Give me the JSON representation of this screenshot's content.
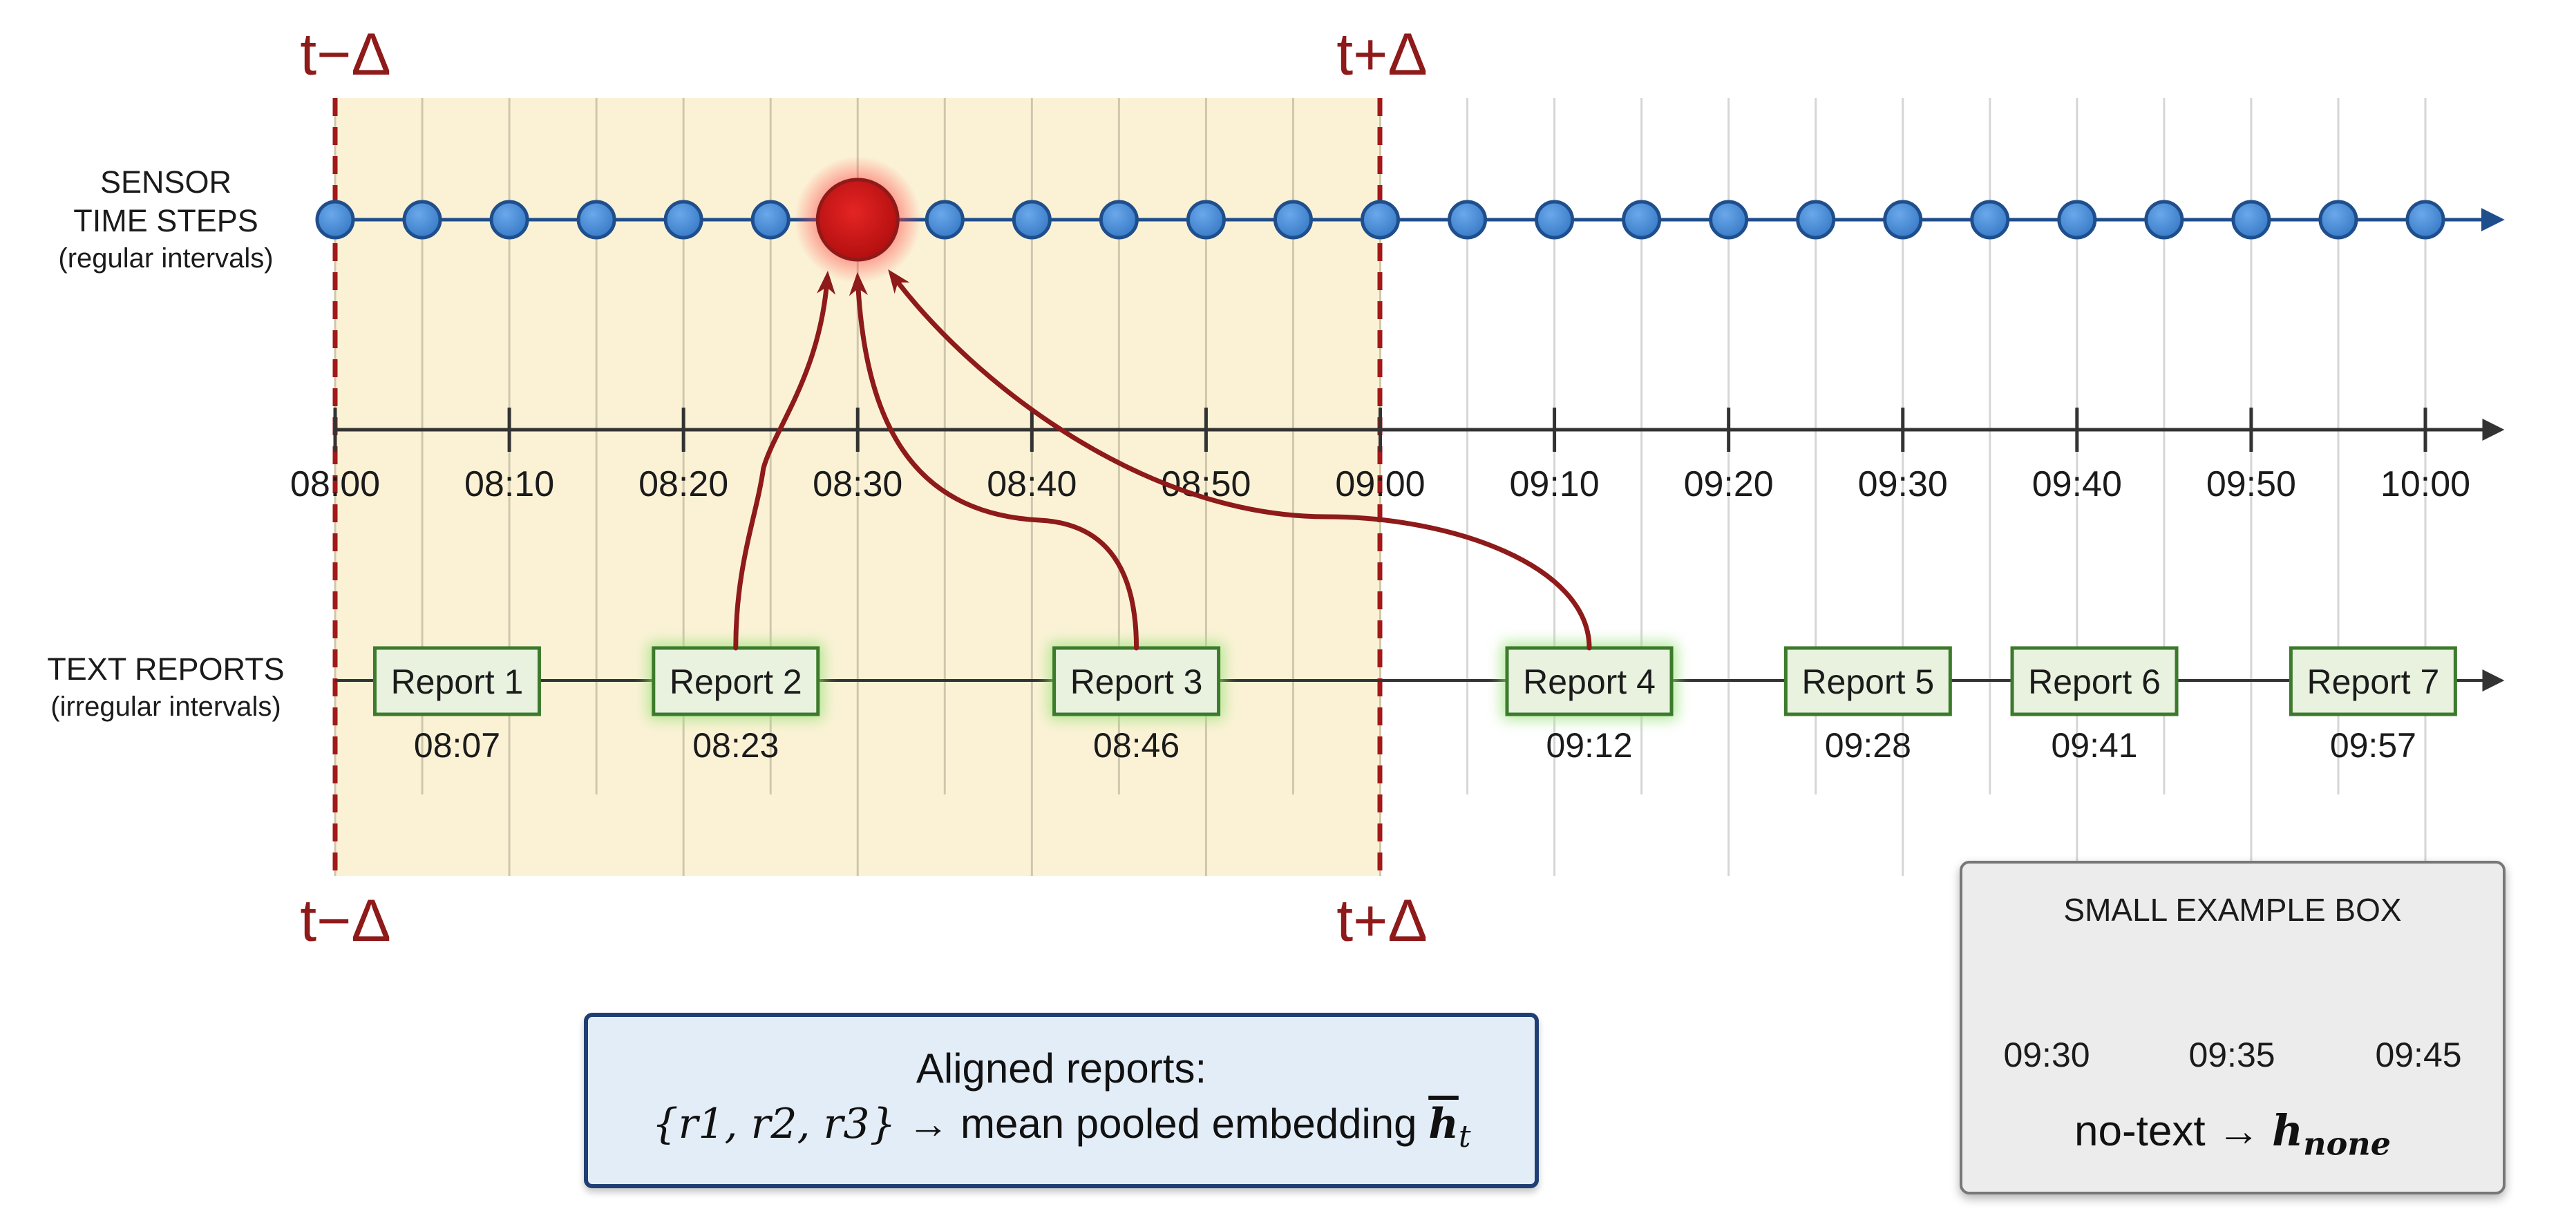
{
  "window_labels": {
    "left": "t−Δ",
    "right": "t+Δ"
  },
  "sensor_row": {
    "title_line1": "SENSOR",
    "title_line2": "TIME STEPS",
    "subtitle": "(regular intervals)",
    "step_minutes": 5,
    "highlighted_time": "08:30"
  },
  "time_axis": {
    "ticks": [
      "08:00",
      "08:10",
      "08:20",
      "08:30",
      "08:40",
      "08:50",
      "09:00",
      "09:10",
      "09:20",
      "09:30",
      "09:40",
      "09:50",
      "10:00"
    ]
  },
  "reports_row": {
    "title": "TEXT REPORTS",
    "subtitle": "(irregular intervals)",
    "reports": [
      {
        "label": "Report 1",
        "time": "08:07",
        "aligned": false
      },
      {
        "label": "Report 2",
        "time": "08:23",
        "aligned": true
      },
      {
        "label": "Report 3",
        "time": "08:46",
        "aligned": true
      },
      {
        "label": "Report 4",
        "time": "09:12",
        "aligned": true
      },
      {
        "label": "Report 5",
        "time": "09:28",
        "aligned": false
      },
      {
        "label": "Report 6",
        "time": "09:41",
        "aligned": false
      },
      {
        "label": "Report 7",
        "time": "09:57",
        "aligned": false
      }
    ]
  },
  "aligned_box": {
    "line1": "Aligned reports:",
    "set_text": "{r1, r2, r3}",
    "arrow": "→",
    "mean_text": "mean pooled embedding",
    "h_symbol": "h",
    "h_subscript": "t"
  },
  "example_box": {
    "title": "SMALL EXAMPLE BOX",
    "ticks": [
      "09:30",
      "09:35",
      "09:45"
    ],
    "no_text": "no-text",
    "arrow": "→",
    "h_symbol": "h",
    "h_subscript": "none"
  },
  "colors": {
    "window_fill": "#fbf2d6",
    "window_border": "#a31818",
    "sensor_dot": "#4a8fd8",
    "highlight_dot": "#d01616",
    "report_fill": "#e8f2df",
    "report_border": "#3c7a2c",
    "arrow": "#8e1a1a",
    "axis": "#333333"
  }
}
